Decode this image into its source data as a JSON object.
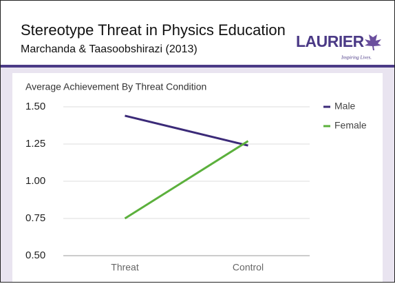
{
  "header": {
    "title": "Stereotype Threat in Physics Education",
    "subtitle": "Marchanda & Taasoobshirazi (2013)"
  },
  "logo": {
    "name": "LAURIER",
    "tagline": "Inspiring Lives."
  },
  "chart_data": {
    "type": "line",
    "title": "Average Achievement By Threat Condition",
    "categories": [
      "Threat",
      "Control"
    ],
    "series": [
      {
        "name": "Male",
        "color": "#3b2a78",
        "values": [
          1.44,
          1.24
        ]
      },
      {
        "name": "Female",
        "color": "#5bb03c",
        "values": [
          0.75,
          1.27
        ]
      }
    ],
    "ylim": [
      0.5,
      1.5
    ],
    "yticks": [
      {
        "value": 0.5,
        "label": "0.50"
      },
      {
        "value": 0.75,
        "label": "0.75"
      },
      {
        "value": 1,
        "label": "1.00"
      },
      {
        "value": 1.25,
        "label": "1.25"
      },
      {
        "value": 1.5,
        "label": "1.50"
      }
    ],
    "grid": true,
    "legend": "right"
  }
}
